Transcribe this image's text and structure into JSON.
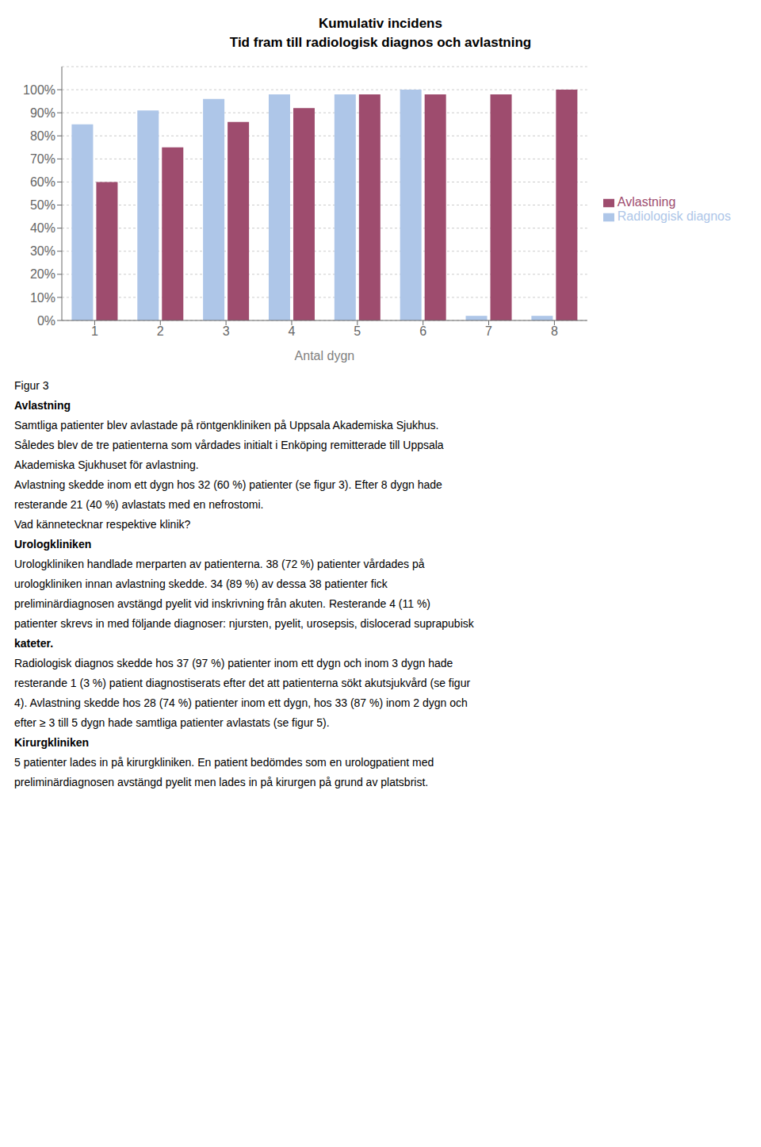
{
  "chart_data": {
    "type": "bar",
    "title": "Kumulativ incidens",
    "subtitle": "Tid fram till radiologisk diagnos och avlastning",
    "x_label": "Antal dygn",
    "categories": [
      1,
      2,
      3,
      4,
      5,
      6,
      7,
      8
    ],
    "series": [
      {
        "name": "Radiologisk diagnos",
        "color": "#aec6e8",
        "values": [
          0.85,
          0.91,
          0.96,
          0.98,
          0.98,
          1.0,
          0.02,
          0.02
        ]
      },
      {
        "name": "Avlastning",
        "color": "#9e4c6e",
        "values": [
          0.6,
          0.75,
          0.86,
          0.92,
          0.98,
          0.98,
          0.98,
          1.0
        ]
      }
    ],
    "ylim": [
      0,
      1.1
    ],
    "yticks": [
      {
        "value": 0.0,
        "label": "0%"
      },
      {
        "value": 0.1,
        "label": "10%"
      },
      {
        "value": 0.2,
        "label": "20%"
      },
      {
        "value": 0.3,
        "label": "30%"
      },
      {
        "value": 0.4,
        "label": "40%"
      },
      {
        "value": 0.5,
        "label": "50%"
      },
      {
        "value": 0.6,
        "label": "60%"
      },
      {
        "value": 0.7,
        "label": "70%"
      },
      {
        "value": 0.8,
        "label": "80%"
      },
      {
        "value": 0.9,
        "label": "90%"
      },
      {
        "value": 1.0,
        "label": "100%"
      }
    ],
    "grid": true,
    "legend": "right",
    "annotations": [
      "Figur 3",
      "Avlastning",
      "Samtliga patienter blev avlastade på röntgenkliniken på Uppsala Akademiska Sjukhus.",
      "Således blev de tre patienterna som vårdades initialt i Enköping remitterade till Uppsala",
      "Akademiska Sjukhuset för avlastning.",
      "Avlastning skedde inom ett dygn hos 32 (60 %) patienter (se figur 3). Efter 8 dygn hade",
      "resterande 21 (40 %) avlastats med en nefrostomi.",
      "Vad kännetecknar respektive klinik?",
      "Urologkliniken",
      "Urologkliniken handlade merparten av patienterna. 38 (72 %) patienter vårdades på",
      "urologkliniken innan avlastning skedde. 34 (89 %) av dessa 38 patienter fick",
      "preliminärdiagnosen avstängd pyelit vid inskrivning från akuten. Resterande 4 (11 %)",
      "patienter skrevs in med följande diagnoser: njursten, pyelit, urosepsis, dislocerad suprapubisk",
      "kateter.",
      "Radiologisk diagnos skedde hos 37 (97 %) patienter inom ett dygn och inom 3 dygn hade",
      "resterande 1 (3 %) patient diagnostiserats efter det att patienterna sökt akutsjukvård (se figur",
      "4). Avlastning skedde hos 28 (74 %) patienter inom ett dygn, hos 33 (87 %) inom 2 dygn och",
      "efter ≥ 3 till 5 dygn hade samtliga patienter avlastats (se figur 5).",
      "Kirurgkliniken",
      "5 patienter lades in på kirurgkliniken. En patient bedömdes som en urologpatient med",
      "preliminärdiagnosen avstängd pyelit men lades in på kirurgen på grund av platsbrist."
    ]
  }
}
